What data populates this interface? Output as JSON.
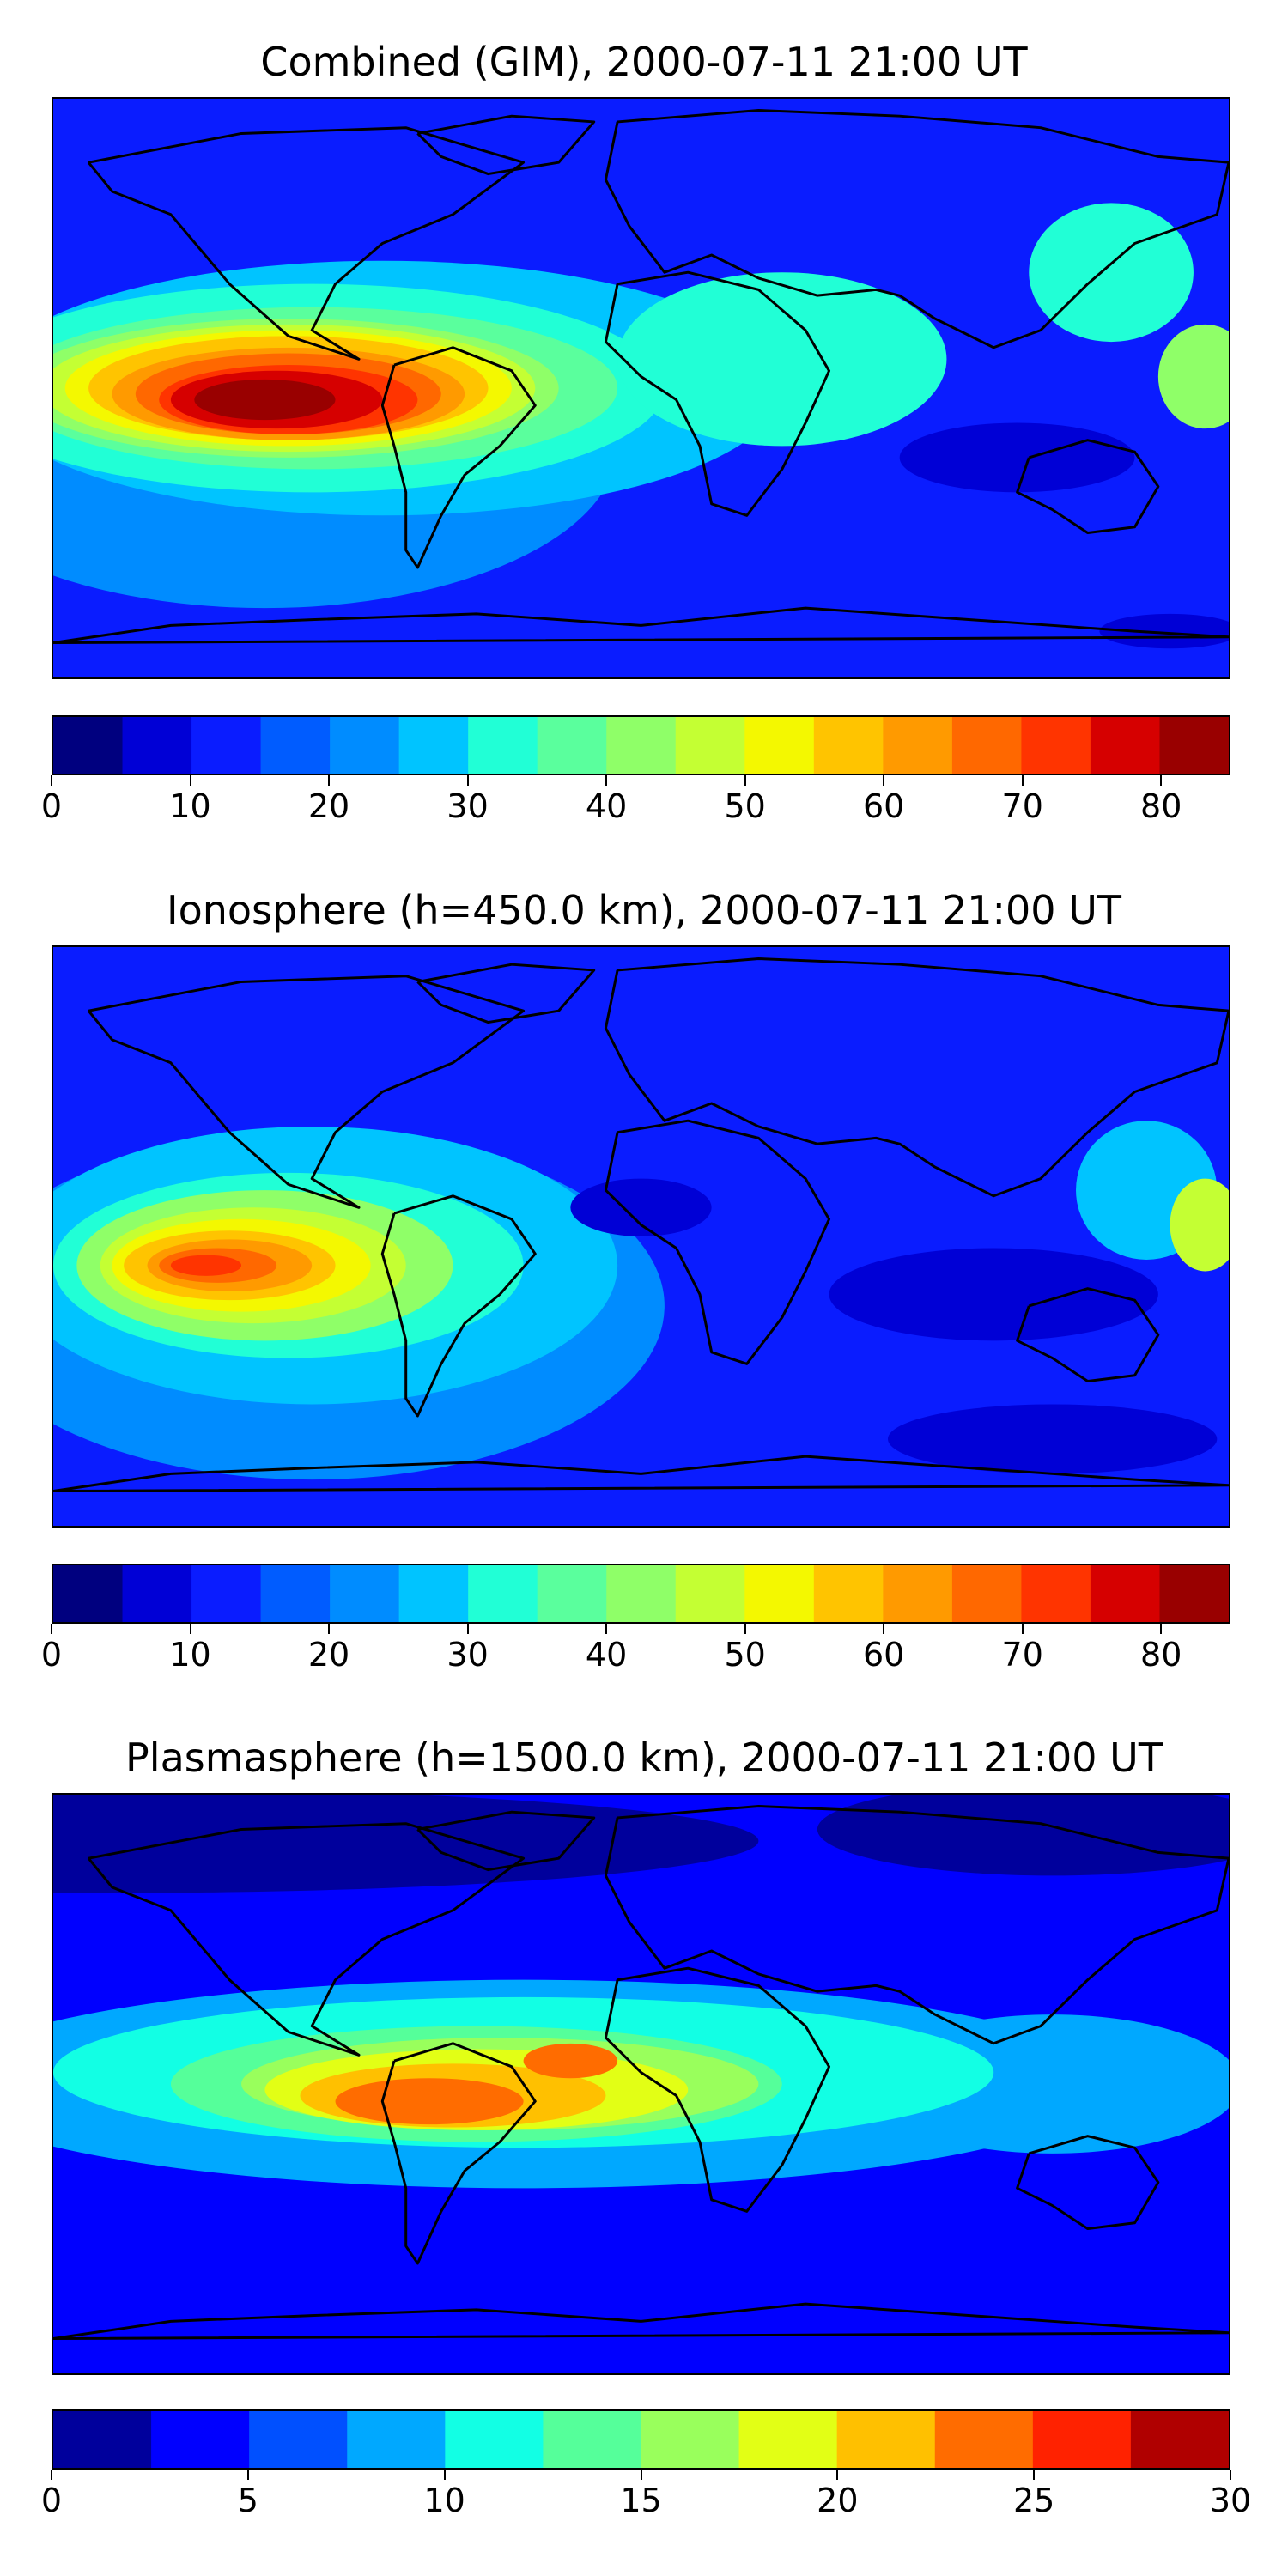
{
  "panels": [
    {
      "title": "Combined (GIM), 2000-07-11 21:00 UT",
      "colormap": [
        "#00007f",
        "#0000d6",
        "#0a1cff",
        "#005cff",
        "#008cff",
        "#00c4ff",
        "#21ffd6",
        "#5aff9d",
        "#8fff68",
        "#c4ff33",
        "#f4f800",
        "#ffc400",
        "#ff9a00",
        "#ff6800",
        "#ff3400",
        "#d60000",
        "#990000"
      ],
      "colorbar_ticks": [
        0,
        10,
        20,
        30,
        40,
        50,
        60,
        70,
        80
      ],
      "range": [
        0,
        85
      ],
      "base_color": "#0a1cff"
    },
    {
      "title": "Ionosphere  (h=450.0 km), 2000-07-11 21:00 UT",
      "colormap": [
        "#00007f",
        "#0000d6",
        "#0a1cff",
        "#005cff",
        "#008cff",
        "#00c4ff",
        "#21ffd6",
        "#5aff9d",
        "#8fff68",
        "#c4ff33",
        "#f4f800",
        "#ffc400",
        "#ff9a00",
        "#ff6800",
        "#ff3400",
        "#d60000",
        "#990000"
      ],
      "colorbar_ticks": [
        0,
        10,
        20,
        30,
        40,
        50,
        60,
        70,
        80
      ],
      "range": [
        0,
        85
      ],
      "base_color": "#0a1cff"
    },
    {
      "title": "Plasmasphere (h=1500.0 km), 2000-07-11 21:00 UT",
      "colormap": [
        "#00009c",
        "#0000ff",
        "#0050ff",
        "#00a8ff",
        "#12ffe4",
        "#55ff9a",
        "#99ff5c",
        "#e2ff15",
        "#ffc000",
        "#ff6c00",
        "#ff2200",
        "#b00000"
      ],
      "colorbar_ticks": [
        0,
        5,
        10,
        15,
        20,
        25,
        30
      ],
      "range": [
        0,
        30
      ],
      "base_color": "#0000ff"
    }
  ]
}
